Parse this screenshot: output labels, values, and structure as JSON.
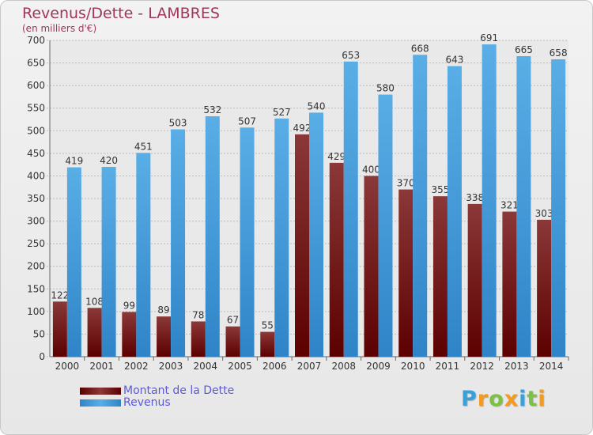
{
  "title": "Revenus/Dette - LAMBRES",
  "subtitle": "(en milliers d'€)",
  "colors": {
    "dette_dark": "#5c0000",
    "dette_light": "#8b3838",
    "revenus_dark": "#2f84c8",
    "revenus_light": "#5aaee6",
    "title": "#a0365e",
    "legend_text": "#5b5bd6"
  },
  "legend": {
    "dette_label": "Montant de la Dette",
    "revenus_label": "Revenus"
  },
  "logo": {
    "letters": [
      "P",
      "r",
      "o",
      "x",
      "i",
      "t",
      "i"
    ],
    "colors": [
      "#3aa0d8",
      "#f39a1f",
      "#7cc242",
      "#f39a1f",
      "#3aa0d8",
      "#7cc242",
      "#f39a1f"
    ]
  },
  "chart_data": {
    "type": "bar",
    "title": "Revenus/Dette - LAMBRES",
    "subtitle": "(en milliers d'€)",
    "xlabel": "",
    "ylabel": "",
    "ylim": [
      0,
      700
    ],
    "yticks": [
      0,
      50,
      100,
      150,
      200,
      250,
      300,
      350,
      400,
      450,
      500,
      550,
      600,
      650,
      700
    ],
    "grid": true,
    "legend_position": "bottom-left",
    "categories": [
      "2000",
      "2001",
      "2002",
      "2003",
      "2004",
      "2005",
      "2006",
      "2007",
      "2008",
      "2009",
      "2010",
      "2011",
      "2012",
      "2013",
      "2014"
    ],
    "series": [
      {
        "name": "Montant de la Dette",
        "values": [
          122,
          108,
          99,
          89,
          78,
          67,
          55,
          492,
          429,
          400,
          370,
          355,
          338,
          321,
          303
        ]
      },
      {
        "name": "Revenus",
        "values": [
          419,
          420,
          451,
          503,
          532,
          507,
          527,
          540,
          653,
          580,
          668,
          643,
          691,
          665,
          658
        ]
      }
    ]
  }
}
